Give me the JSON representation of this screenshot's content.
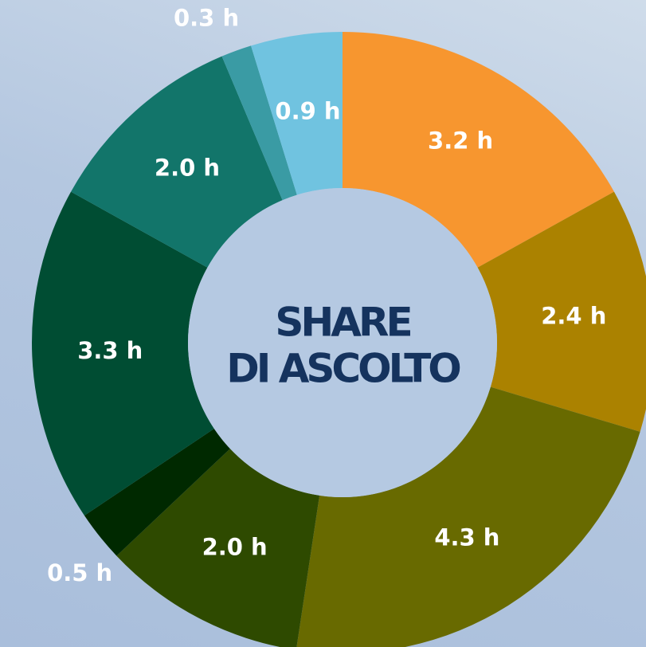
{
  "chart_data": {
    "type": "donut",
    "title": [
      "SHARE",
      "DI ASCOLTO"
    ],
    "values": [
      3.2,
      2.4,
      4.3,
      2.0,
      0.5,
      3.3,
      2.0,
      0.3,
      0.9
    ],
    "value_labels": [
      "3.2 h",
      "2.4 h",
      "4.3 h",
      "2.0 h",
      "0.5 h",
      "3.3 h",
      "2.0 h",
      "0.3 h",
      "0.9 h"
    ],
    "colors": [
      "#f7962f",
      "#ab8200",
      "#686a00",
      "#2e4a00",
      "#002900",
      "#004d33",
      "#12756a",
      "#3a9ba4",
      "#70c3e0"
    ]
  }
}
